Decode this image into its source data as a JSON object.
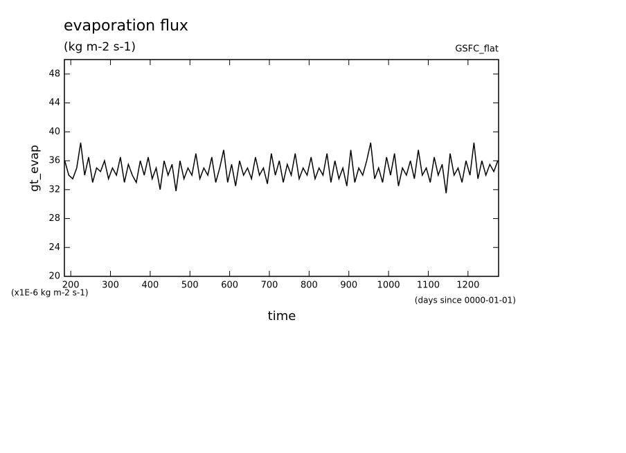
{
  "chart_data": {
    "type": "line",
    "title": "evaporation flux",
    "subtitle": "(kg m-2 s-1)",
    "annotation": "GSFC_flat",
    "y_label": "gt_evap",
    "x_label": "time",
    "y_unit": "(x1E-6 kg m-2 s-1)",
    "x_unit": "(days since 0000-01-01)",
    "color": "#000000",
    "xlim": [
      184,
      1277
    ],
    "ylim": [
      20,
      50
    ],
    "xticks": [
      200,
      300,
      400,
      500,
      600,
      700,
      800,
      900,
      1000,
      1100,
      1200
    ],
    "yticks": [
      20,
      24,
      28,
      32,
      36,
      40,
      44,
      48
    ],
    "x": [
      185,
      195,
      205,
      215,
      225,
      235,
      245,
      255,
      265,
      275,
      285,
      295,
      305,
      315,
      325,
      335,
      345,
      355,
      365,
      375,
      385,
      395,
      405,
      415,
      425,
      435,
      445,
      455,
      465,
      475,
      485,
      495,
      505,
      515,
      525,
      535,
      545,
      555,
      565,
      575,
      585,
      595,
      605,
      615,
      625,
      635,
      645,
      655,
      665,
      675,
      685,
      695,
      705,
      715,
      725,
      735,
      745,
      755,
      765,
      775,
      785,
      795,
      805,
      815,
      825,
      835,
      845,
      855,
      865,
      875,
      885,
      895,
      905,
      915,
      925,
      935,
      945,
      955,
      965,
      975,
      985,
      995,
      1005,
      1015,
      1025,
      1035,
      1045,
      1055,
      1065,
      1075,
      1085,
      1095,
      1105,
      1115,
      1125,
      1135,
      1145,
      1155,
      1165,
      1175,
      1185,
      1195,
      1205,
      1215,
      1225,
      1235,
      1245,
      1255,
      1265,
      1275
    ],
    "values": [
      36,
      34,
      33.5,
      35,
      38.5,
      34,
      36.5,
      33,
      35,
      34.5,
      36,
      33.5,
      35,
      34,
      36.5,
      33,
      35.5,
      34,
      33,
      36,
      34,
      36.5,
      33.5,
      35,
      32,
      36,
      34,
      35.5,
      31.8,
      36,
      33.5,
      35,
      34,
      37,
      33.5,
      35,
      34,
      36.5,
      33,
      35,
      37.5,
      33,
      35.5,
      32.5,
      36,
      34,
      35,
      33.5,
      36.5,
      34,
      35,
      32.8,
      37,
      34,
      36,
      33,
      35.5,
      34,
      37,
      33.5,
      35,
      34,
      36.5,
      33.5,
      35,
      34,
      37,
      33,
      36,
      33.5,
      35,
      32.5,
      37.5,
      33,
      35,
      34,
      36,
      38.5,
      33.5,
      35,
      33,
      36.5,
      34,
      37,
      32.5,
      35,
      34,
      36,
      33.5,
      37.5,
      34,
      35,
      33,
      36.5,
      34,
      35.5,
      31.5,
      37,
      34,
      35,
      33,
      36,
      34,
      38.5,
      33.5,
      36,
      34,
      35.5,
      34.5,
      36
    ]
  }
}
